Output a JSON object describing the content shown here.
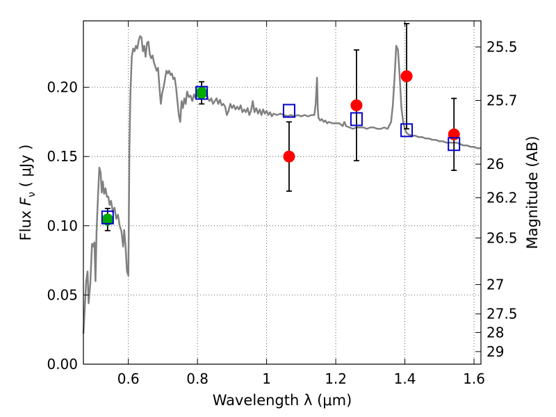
{
  "chart_data": {
    "type": "scatter",
    "xlabel": "Wavelength  λ (μm)",
    "ylabel": "Flux  F_ν  ( μJy )",
    "ylabel_parts": {
      "prefix": "Flux  ",
      "symbol": "F",
      "subscript": "ν",
      "suffix": "  ( μJy )"
    },
    "y2label": "Magnitude (AB)",
    "xlim": [
      0.47,
      1.62
    ],
    "ylim": [
      0.0,
      0.248
    ],
    "x_ticks": [
      0.6,
      0.8,
      1.0,
      1.2,
      1.4,
      1.6
    ],
    "x_tick_labels": [
      "0.6",
      "0.8",
      "1",
      "1.2",
      "1.4",
      "1.6"
    ],
    "y_ticks": [
      0.0,
      0.05,
      0.1,
      0.15,
      0.2
    ],
    "y_tick_labels": [
      "0.00",
      "0.05",
      "0.10",
      "0.15",
      "0.20"
    ],
    "magnitude_ticks": [
      {
        "label": "25.5",
        "flux": 0.2291
      },
      {
        "label": "25.7",
        "flux": 0.1905
      },
      {
        "label": "26",
        "flux": 0.1445
      },
      {
        "label": "26.2",
        "flux": 0.1202
      },
      {
        "label": "26.5",
        "flux": 0.0912
      },
      {
        "label": "27",
        "flux": 0.0575
      },
      {
        "label": "27.5",
        "flux": 0.0363
      },
      {
        "label": "28",
        "flux": 0.0229
      },
      {
        "label": "29",
        "flux": 0.0091
      }
    ],
    "grid": true,
    "series": [
      {
        "name": "model spectrum",
        "kind": "line",
        "color": "#808080",
        "points": [
          [
            0.47,
            0.022
          ],
          [
            0.478,
            0.06
          ],
          [
            0.482,
            0.067
          ],
          [
            0.485,
            0.044
          ],
          [
            0.49,
            0.058
          ],
          [
            0.495,
            0.087
          ],
          [
            0.498,
            0.085
          ],
          [
            0.502,
            0.088
          ],
          [
            0.505,
            0.06
          ],
          [
            0.508,
            0.095
          ],
          [
            0.512,
            0.12
          ],
          [
            0.516,
            0.142
          ],
          [
            0.52,
            0.138
          ],
          [
            0.523,
            0.124
          ],
          [
            0.526,
            0.132
          ],
          [
            0.53,
            0.123
          ],
          [
            0.534,
            0.127
          ],
          [
            0.538,
            0.121
          ],
          [
            0.542,
            0.121
          ],
          [
            0.546,
            0.115
          ],
          [
            0.55,
            0.118
          ],
          [
            0.555,
            0.11
          ],
          [
            0.56,
            0.113
          ],
          [
            0.565,
            0.105
          ],
          [
            0.57,
            0.108
          ],
          [
            0.575,
            0.1
          ],
          [
            0.58,
            0.096
          ],
          [
            0.585,
            0.085
          ],
          [
            0.588,
            0.097
          ],
          [
            0.592,
            0.085
          ],
          [
            0.596,
            0.067
          ],
          [
            0.6,
            0.064
          ],
          [
            0.603,
            0.155
          ],
          [
            0.606,
            0.195
          ],
          [
            0.61,
            0.222
          ],
          [
            0.614,
            0.228
          ],
          [
            0.618,
            0.226
          ],
          [
            0.622,
            0.23
          ],
          [
            0.626,
            0.228
          ],
          [
            0.63,
            0.234
          ],
          [
            0.634,
            0.237
          ],
          [
            0.638,
            0.236
          ],
          [
            0.642,
            0.226
          ],
          [
            0.646,
            0.23
          ],
          [
            0.65,
            0.222
          ],
          [
            0.654,
            0.232
          ],
          [
            0.658,
            0.233
          ],
          [
            0.662,
            0.224
          ],
          [
            0.666,
            0.221
          ],
          [
            0.67,
            0.223
          ],
          [
            0.674,
            0.218
          ],
          [
            0.678,
            0.215
          ],
          [
            0.682,
            0.212
          ],
          [
            0.686,
            0.214
          ],
          [
            0.69,
            0.2
          ],
          [
            0.694,
            0.188
          ],
          [
            0.698,
            0.196
          ],
          [
            0.702,
            0.2
          ],
          [
            0.706,
            0.206
          ],
          [
            0.71,
            0.212
          ],
          [
            0.714,
            0.21
          ],
          [
            0.718,
            0.212
          ],
          [
            0.722,
            0.209
          ],
          [
            0.726,
            0.21
          ],
          [
            0.73,
            0.206
          ],
          [
            0.734,
            0.207
          ],
          [
            0.738,
            0.2
          ],
          [
            0.742,
            0.19
          ],
          [
            0.746,
            0.18
          ],
          [
            0.75,
            0.175
          ],
          [
            0.754,
            0.19
          ],
          [
            0.758,
            0.185
          ],
          [
            0.762,
            0.192
          ],
          [
            0.766,
            0.188
          ],
          [
            0.77,
            0.197
          ],
          [
            0.775,
            0.193
          ],
          [
            0.78,
            0.194
          ],
          [
            0.785,
            0.19
          ],
          [
            0.79,
            0.195
          ],
          [
            0.795,
            0.192
          ],
          [
            0.8,
            0.195
          ],
          [
            0.805,
            0.192
          ],
          [
            0.81,
            0.196
          ],
          [
            0.815,
            0.195
          ],
          [
            0.82,
            0.2
          ],
          [
            0.825,
            0.197
          ],
          [
            0.83,
            0.192
          ],
          [
            0.835,
            0.19
          ],
          [
            0.84,
            0.192
          ],
          [
            0.845,
            0.188
          ],
          [
            0.85,
            0.19
          ],
          [
            0.855,
            0.192
          ],
          [
            0.86,
            0.188
          ],
          [
            0.865,
            0.191
          ],
          [
            0.87,
            0.187
          ],
          [
            0.875,
            0.188
          ],
          [
            0.88,
            0.186
          ],
          [
            0.885,
            0.18
          ],
          [
            0.89,
            0.183
          ],
          [
            0.895,
            0.188
          ],
          [
            0.9,
            0.185
          ],
          [
            0.905,
            0.187
          ],
          [
            0.91,
            0.184
          ],
          [
            0.915,
            0.186
          ],
          [
            0.92,
            0.184
          ],
          [
            0.925,
            0.187
          ],
          [
            0.93,
            0.182
          ],
          [
            0.935,
            0.184
          ],
          [
            0.94,
            0.182
          ],
          [
            0.945,
            0.185
          ],
          [
            0.95,
            0.18
          ],
          [
            0.955,
            0.183
          ],
          [
            0.96,
            0.19
          ],
          [
            0.965,
            0.182
          ],
          [
            0.97,
            0.185
          ],
          [
            0.975,
            0.181
          ],
          [
            0.98,
            0.184
          ],
          [
            0.985,
            0.18
          ],
          [
            0.99,
            0.184
          ],
          [
            0.995,
            0.181
          ],
          [
            1.0,
            0.183
          ],
          [
            1.005,
            0.18
          ],
          [
            1.01,
            0.182
          ],
          [
            1.015,
            0.179
          ],
          [
            1.02,
            0.181
          ],
          [
            1.03,
            0.18
          ],
          [
            1.04,
            0.181
          ],
          [
            1.05,
            0.18
          ],
          [
            1.06,
            0.179
          ],
          [
            1.07,
            0.18
          ],
          [
            1.08,
            0.179
          ],
          [
            1.09,
            0.18
          ],
          [
            1.1,
            0.179
          ],
          [
            1.11,
            0.18
          ],
          [
            1.12,
            0.179
          ],
          [
            1.13,
            0.18
          ],
          [
            1.138,
            0.18
          ],
          [
            1.142,
            0.188
          ],
          [
            1.146,
            0.207
          ],
          [
            1.148,
            0.185
          ],
          [
            1.15,
            0.178
          ],
          [
            1.155,
            0.176
          ],
          [
            1.16,
            0.177
          ],
          [
            1.165,
            0.175
          ],
          [
            1.17,
            0.176
          ],
          [
            1.175,
            0.174
          ],
          [
            1.18,
            0.175
          ],
          [
            1.19,
            0.174
          ],
          [
            1.2,
            0.174
          ],
          [
            1.21,
            0.174
          ],
          [
            1.22,
            0.172
          ],
          [
            1.225,
            0.175
          ],
          [
            1.23,
            0.172
          ],
          [
            1.24,
            0.171
          ],
          [
            1.25,
            0.17
          ],
          [
            1.26,
            0.171
          ],
          [
            1.27,
            0.171
          ],
          [
            1.28,
            0.171
          ],
          [
            1.29,
            0.17
          ],
          [
            1.3,
            0.171
          ],
          [
            1.31,
            0.171
          ],
          [
            1.32,
            0.17
          ],
          [
            1.33,
            0.17
          ],
          [
            1.34,
            0.171
          ],
          [
            1.35,
            0.17
          ],
          [
            1.36,
            0.175
          ],
          [
            1.365,
            0.187
          ],
          [
            1.37,
            0.207
          ],
          [
            1.375,
            0.23
          ],
          [
            1.38,
            0.227
          ],
          [
            1.385,
            0.208
          ],
          [
            1.39,
            0.185
          ],
          [
            1.395,
            0.175
          ],
          [
            1.4,
            0.17
          ],
          [
            1.405,
            0.167
          ],
          [
            1.41,
            0.166
          ],
          [
            1.42,
            0.165
          ],
          [
            1.43,
            0.165
          ],
          [
            1.44,
            0.164
          ],
          [
            1.45,
            0.164
          ],
          [
            1.46,
            0.163
          ],
          [
            1.47,
            0.163
          ],
          [
            1.48,
            0.162
          ],
          [
            1.49,
            0.162
          ],
          [
            1.5,
            0.161
          ],
          [
            1.51,
            0.161
          ],
          [
            1.52,
            0.16
          ],
          [
            1.53,
            0.16
          ],
          [
            1.54,
            0.16
          ],
          [
            1.55,
            0.16
          ],
          [
            1.56,
            0.159
          ],
          [
            1.57,
            0.158
          ],
          [
            1.58,
            0.158
          ],
          [
            1.59,
            0.157
          ],
          [
            1.6,
            0.157
          ],
          [
            1.61,
            0.156
          ],
          [
            1.62,
            0.156
          ]
        ]
      },
      {
        "name": "observed (green)",
        "kind": "points",
        "color": "#00aa00",
        "points": [
          {
            "x": 0.54,
            "y": 0.1045,
            "err": 0.008
          },
          {
            "x": 0.812,
            "y": 0.196,
            "err": 0.008
          }
        ]
      },
      {
        "name": "observed (red)",
        "kind": "points",
        "color": "#ff0000",
        "points": [
          {
            "x": 1.065,
            "y": 0.15,
            "err": 0.025
          },
          {
            "x": 1.26,
            "y": 0.187,
            "err": 0.04
          },
          {
            "x": 1.405,
            "y": 0.208,
            "err": 0.038
          },
          {
            "x": 1.542,
            "y": 0.166,
            "err": 0.026
          }
        ]
      },
      {
        "name": "model photometry",
        "kind": "open-squares",
        "color": "#0000cc",
        "points": [
          {
            "x": 0.54,
            "y": 0.106
          },
          {
            "x": 0.812,
            "y": 0.196
          },
          {
            "x": 1.065,
            "y": 0.183
          },
          {
            "x": 1.26,
            "y": 0.177
          },
          {
            "x": 1.405,
            "y": 0.169
          },
          {
            "x": 1.542,
            "y": 0.159
          }
        ]
      }
    ]
  }
}
